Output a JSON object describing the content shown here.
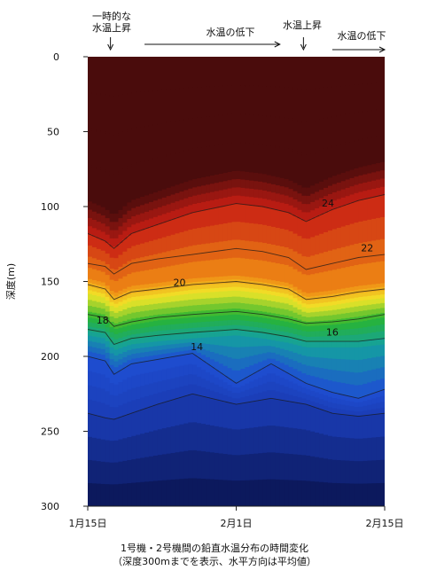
{
  "chart_data": {
    "type": "heatmap",
    "subtype": "vertical water temperature section (depth vs time) with isotherm contours",
    "title": "1号機・2号機間の鉛直水温分布の時間変化",
    "subtitle": "（深度300mまでを表示、水平方向は平均値）",
    "ylabel": "深度(m)",
    "y_axis_inverted": true,
    "ylim": [
      0,
      300
    ],
    "y_ticks": [
      "0",
      "50",
      "100",
      "150",
      "200",
      "250",
      "300"
    ],
    "x_ticks": [
      "1月15日",
      "2月1日",
      "2月15日"
    ],
    "x_tick_days": [
      0,
      17,
      34
    ],
    "grid": false,
    "colors": {
      "warm_top": "#4a0c0c",
      "red": "#c81e14",
      "orange": "#f08c14",
      "yellow": "#f2e628",
      "green": "#28b432",
      "teal": "#14a0a0",
      "blue": "#1e4ed2",
      "deep": "#0a1450"
    },
    "isotherms": [
      {
        "label": "24",
        "points": [
          [
            0,
            118
          ],
          [
            2,
            123
          ],
          [
            3,
            128
          ],
          [
            5,
            118
          ],
          [
            8,
            112
          ],
          [
            12,
            104
          ],
          [
            17,
            98
          ],
          [
            20,
            100
          ],
          [
            23,
            104
          ],
          [
            25,
            110
          ],
          [
            28,
            102
          ],
          [
            31,
            96
          ],
          [
            34,
            92
          ]
        ]
      },
      {
        "label": "22",
        "points": [
          [
            0,
            138
          ],
          [
            2,
            140
          ],
          [
            3,
            145
          ],
          [
            5,
            138
          ],
          [
            8,
            135
          ],
          [
            12,
            132
          ],
          [
            17,
            128
          ],
          [
            20,
            130
          ],
          [
            23,
            134
          ],
          [
            25,
            142
          ],
          [
            28,
            138
          ],
          [
            31,
            134
          ],
          [
            34,
            132
          ]
        ]
      },
      {
        "label": "20",
        "points": [
          [
            0,
            152
          ],
          [
            2,
            155
          ],
          [
            3,
            162
          ],
          [
            5,
            157
          ],
          [
            8,
            155
          ],
          [
            12,
            152
          ],
          [
            17,
            150
          ],
          [
            20,
            152
          ],
          [
            23,
            155
          ],
          [
            25,
            162
          ],
          [
            28,
            160
          ],
          [
            31,
            157
          ],
          [
            34,
            155
          ]
        ]
      },
      {
        "label": "18",
        "points": [
          [
            0,
            172
          ],
          [
            2,
            174
          ],
          [
            3,
            180
          ],
          [
            5,
            177
          ],
          [
            8,
            174
          ],
          [
            12,
            172
          ],
          [
            17,
            170
          ],
          [
            20,
            172
          ],
          [
            23,
            175
          ],
          [
            25,
            178
          ],
          [
            28,
            177
          ],
          [
            31,
            175
          ],
          [
            34,
            172
          ]
        ]
      },
      {
        "label": "16",
        "points": [
          [
            0,
            182
          ],
          [
            2,
            184
          ],
          [
            3,
            192
          ],
          [
            5,
            188
          ],
          [
            8,
            186
          ],
          [
            12,
            184
          ],
          [
            17,
            182
          ],
          [
            20,
            184
          ],
          [
            23,
            187
          ],
          [
            25,
            190
          ],
          [
            28,
            190
          ],
          [
            31,
            190
          ],
          [
            34,
            188
          ]
        ]
      },
      {
        "label": "14",
        "points": [
          [
            0,
            200
          ],
          [
            2,
            203
          ],
          [
            3,
            212
          ],
          [
            5,
            205
          ],
          [
            8,
            202
          ],
          [
            12,
            198
          ],
          [
            17,
            218
          ],
          [
            21,
            205
          ],
          [
            25,
            218
          ],
          [
            28,
            224
          ],
          [
            31,
            228
          ],
          [
            34,
            222
          ]
        ]
      },
      {
        "label": "",
        "points": [
          [
            0,
            238
          ],
          [
            2,
            241
          ],
          [
            3,
            242
          ],
          [
            5,
            238
          ],
          [
            8,
            232
          ],
          [
            12,
            225
          ],
          [
            17,
            232
          ],
          [
            21,
            228
          ],
          [
            25,
            232
          ],
          [
            28,
            238
          ],
          [
            31,
            240
          ],
          [
            34,
            238
          ]
        ]
      }
    ],
    "annotations": [
      {
        "text_lines": [
          "一時的な",
          "水温上昇"
        ],
        "x_day": 2.6,
        "arrow": "down"
      },
      {
        "text_lines": [
          "水温の低下"
        ],
        "x_start_day": 6.5,
        "x_end_day": 22,
        "arrow": "right"
      },
      {
        "text_lines": [
          "水温上昇"
        ],
        "x_day": 24.7,
        "arrow": "down"
      },
      {
        "text_lines": [
          "水温の低下"
        ],
        "x_start_day": 28,
        "x_end_day": 34,
        "arrow": "right"
      }
    ]
  }
}
